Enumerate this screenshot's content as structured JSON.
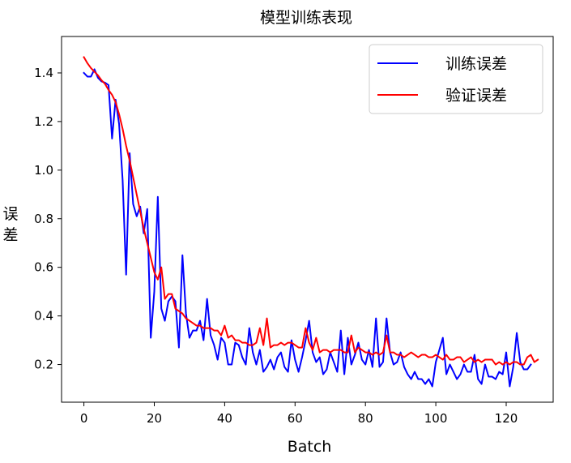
{
  "chart_data": {
    "type": "line",
    "title": "模型训练表现",
    "xlabel": "Batch",
    "ylabel": "误差",
    "xlim": [
      -6.35,
      133.35
    ],
    "ylim": [
      0.045,
      1.55
    ],
    "xticks": [
      0,
      20,
      40,
      60,
      80,
      100,
      120
    ],
    "yticks": [
      0.2,
      0.4,
      0.6,
      0.8,
      1.0,
      1.2,
      1.4
    ],
    "ytick_labels": [
      "0.2",
      "0.4",
      "0.6",
      "0.8",
      "1.0",
      "1.2",
      "1.4"
    ],
    "grid": false,
    "legend": "top-right",
    "x_start": 0,
    "series": [
      {
        "name": "训练误差",
        "color": "#0000ff",
        "values": [
          1.4,
          1.385,
          1.385,
          1.415,
          1.38,
          1.365,
          1.36,
          1.35,
          1.13,
          1.29,
          1.19,
          0.96,
          0.57,
          1.07,
          0.86,
          0.81,
          0.85,
          0.74,
          0.84,
          0.31,
          0.5,
          0.89,
          0.43,
          0.38,
          0.46,
          0.48,
          0.46,
          0.27,
          0.65,
          0.41,
          0.31,
          0.34,
          0.34,
          0.38,
          0.3,
          0.47,
          0.32,
          0.28,
          0.22,
          0.31,
          0.29,
          0.2,
          0.2,
          0.29,
          0.28,
          0.23,
          0.2,
          0.35,
          0.25,
          0.2,
          0.26,
          0.17,
          0.19,
          0.22,
          0.18,
          0.23,
          0.25,
          0.19,
          0.17,
          0.3,
          0.22,
          0.17,
          0.23,
          0.3,
          0.38,
          0.25,
          0.21,
          0.23,
          0.16,
          0.18,
          0.25,
          0.21,
          0.17,
          0.34,
          0.16,
          0.31,
          0.2,
          0.24,
          0.29,
          0.22,
          0.2,
          0.26,
          0.19,
          0.39,
          0.19,
          0.21,
          0.39,
          0.25,
          0.2,
          0.21,
          0.25,
          0.19,
          0.16,
          0.14,
          0.17,
          0.14,
          0.14,
          0.12,
          0.14,
          0.11,
          0.21,
          0.26,
          0.31,
          0.16,
          0.2,
          0.17,
          0.14,
          0.16,
          0.2,
          0.17,
          0.17,
          0.24,
          0.14,
          0.12,
          0.2,
          0.15,
          0.15,
          0.14,
          0.17,
          0.16,
          0.25,
          0.11,
          0.19,
          0.33,
          0.21,
          0.18,
          0.18,
          0.2
        ]
      },
      {
        "name": "验证误差",
        "color": "#ff0000",
        "values": [
          1.465,
          1.44,
          1.42,
          1.405,
          1.39,
          1.37,
          1.355,
          1.33,
          1.31,
          1.28,
          1.23,
          1.17,
          1.1,
          1.04,
          0.97,
          0.9,
          0.83,
          0.76,
          0.7,
          0.64,
          0.58,
          0.55,
          0.6,
          0.47,
          0.49,
          0.49,
          0.43,
          0.42,
          0.41,
          0.39,
          0.38,
          0.37,
          0.36,
          0.36,
          0.35,
          0.35,
          0.35,
          0.34,
          0.34,
          0.32,
          0.36,
          0.31,
          0.32,
          0.3,
          0.3,
          0.29,
          0.29,
          0.28,
          0.28,
          0.29,
          0.35,
          0.28,
          0.39,
          0.27,
          0.28,
          0.28,
          0.29,
          0.28,
          0.29,
          0.29,
          0.28,
          0.27,
          0.27,
          0.35,
          0.29,
          0.26,
          0.31,
          0.25,
          0.26,
          0.26,
          0.25,
          0.26,
          0.26,
          0.26,
          0.25,
          0.25,
          0.32,
          0.25,
          0.27,
          0.26,
          0.25,
          0.25,
          0.24,
          0.25,
          0.24,
          0.25,
          0.32,
          0.25,
          0.25,
          0.24,
          0.24,
          0.23,
          0.24,
          0.25,
          0.24,
          0.23,
          0.24,
          0.24,
          0.23,
          0.23,
          0.24,
          0.23,
          0.22,
          0.24,
          0.22,
          0.22,
          0.23,
          0.23,
          0.21,
          0.22,
          0.23,
          0.21,
          0.22,
          0.21,
          0.22,
          0.22,
          0.22,
          0.2,
          0.21,
          0.2,
          0.21,
          0.2,
          0.21,
          0.21,
          0.2,
          0.2,
          0.23,
          0.24,
          0.21,
          0.22
        ]
      }
    ]
  }
}
